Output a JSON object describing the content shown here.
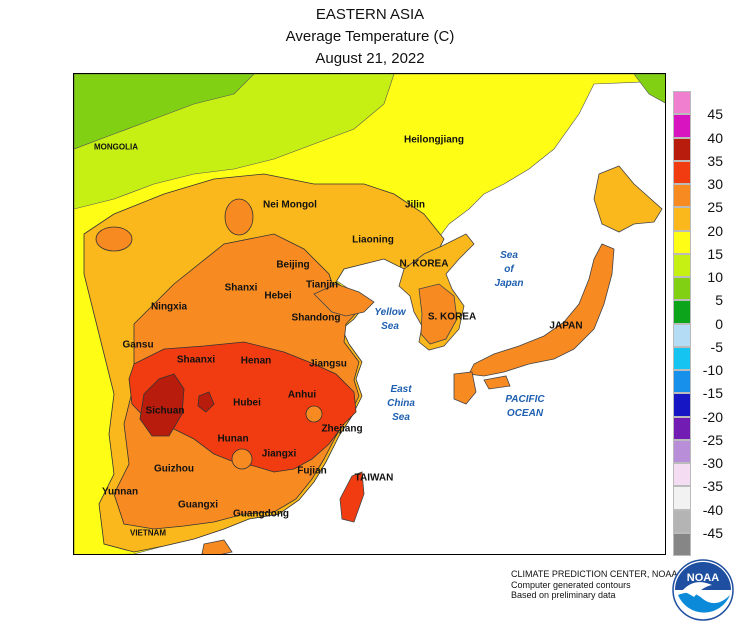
{
  "title": {
    "line1": "EASTERN ASIA",
    "line2": "Average Temperature (C)",
    "line3": "August 21, 2022"
  },
  "legend": {
    "values": [
      "45",
      "40",
      "35",
      "30",
      "25",
      "20",
      "15",
      "10",
      "5",
      "0",
      "-5",
      "-10",
      "-15",
      "-20",
      "-25",
      "-30",
      "-35",
      "-40",
      "-45"
    ],
    "colors": [
      "#f07fd0",
      "#d814c0",
      "#b81c0c",
      "#f03c10",
      "#f88a22",
      "#fbb81c",
      "#fdfd16",
      "#c6f014",
      "#82d014",
      "#0ca41a",
      "#b4dcf4",
      "#16c4f2",
      "#1690ea",
      "#1616c4",
      "#721cb4",
      "#b98ed8",
      "#f4dcf2",
      "#f2f2f2",
      "#b4b4b4",
      "#868686"
    ]
  },
  "regions": {
    "mongolia": "MONGOLIA",
    "heilongjiang": "Heilongjiang",
    "nei_mongol": "Nei Mongol",
    "jilin": "Jilin",
    "liaoning": "Liaoning",
    "beijing": "Beijing",
    "tianjin": "Tianjin",
    "hebei": "Hebei",
    "shanxi": "Shanxi",
    "ningxia": "Ningxia",
    "shandong": "Shandong",
    "gansu": "Gansu",
    "shaanxi": "Shaanxi",
    "henan": "Henan",
    "jiangsu": "Jiangsu",
    "anhui": "Anhui",
    "hubei": "Hubei",
    "sichuan": "Sichuan",
    "hunan": "Hunan",
    "zhejiang": "Zhejiang",
    "jiangxi": "Jiangxi",
    "guizhou": "Guizhou",
    "fujian": "Fujian",
    "yunnan": "Yunnan",
    "guangxi": "Guangxi",
    "guangdong": "Guangdong",
    "vietnam": "VIETNAM",
    "taiwan": "TAIWAN",
    "n_korea": "N. KOREA",
    "s_korea": "S. KOREA",
    "japan": "JAPAN"
  },
  "seas": {
    "sea_of_japan": [
      "Sea",
      "of",
      "Japan"
    ],
    "yellow_sea": [
      "Yellow",
      "Sea"
    ],
    "east_china_sea": [
      "East",
      "China",
      "Sea"
    ],
    "pacific_ocean": [
      "PACIFIC",
      "OCEAN"
    ]
  },
  "credits": {
    "line1": "CLIMATE PREDICTION CENTER, NOAA",
    "line2": "Computer generated contours",
    "line3": "Based on preliminary data"
  },
  "logo": {
    "text": "NOAA"
  }
}
